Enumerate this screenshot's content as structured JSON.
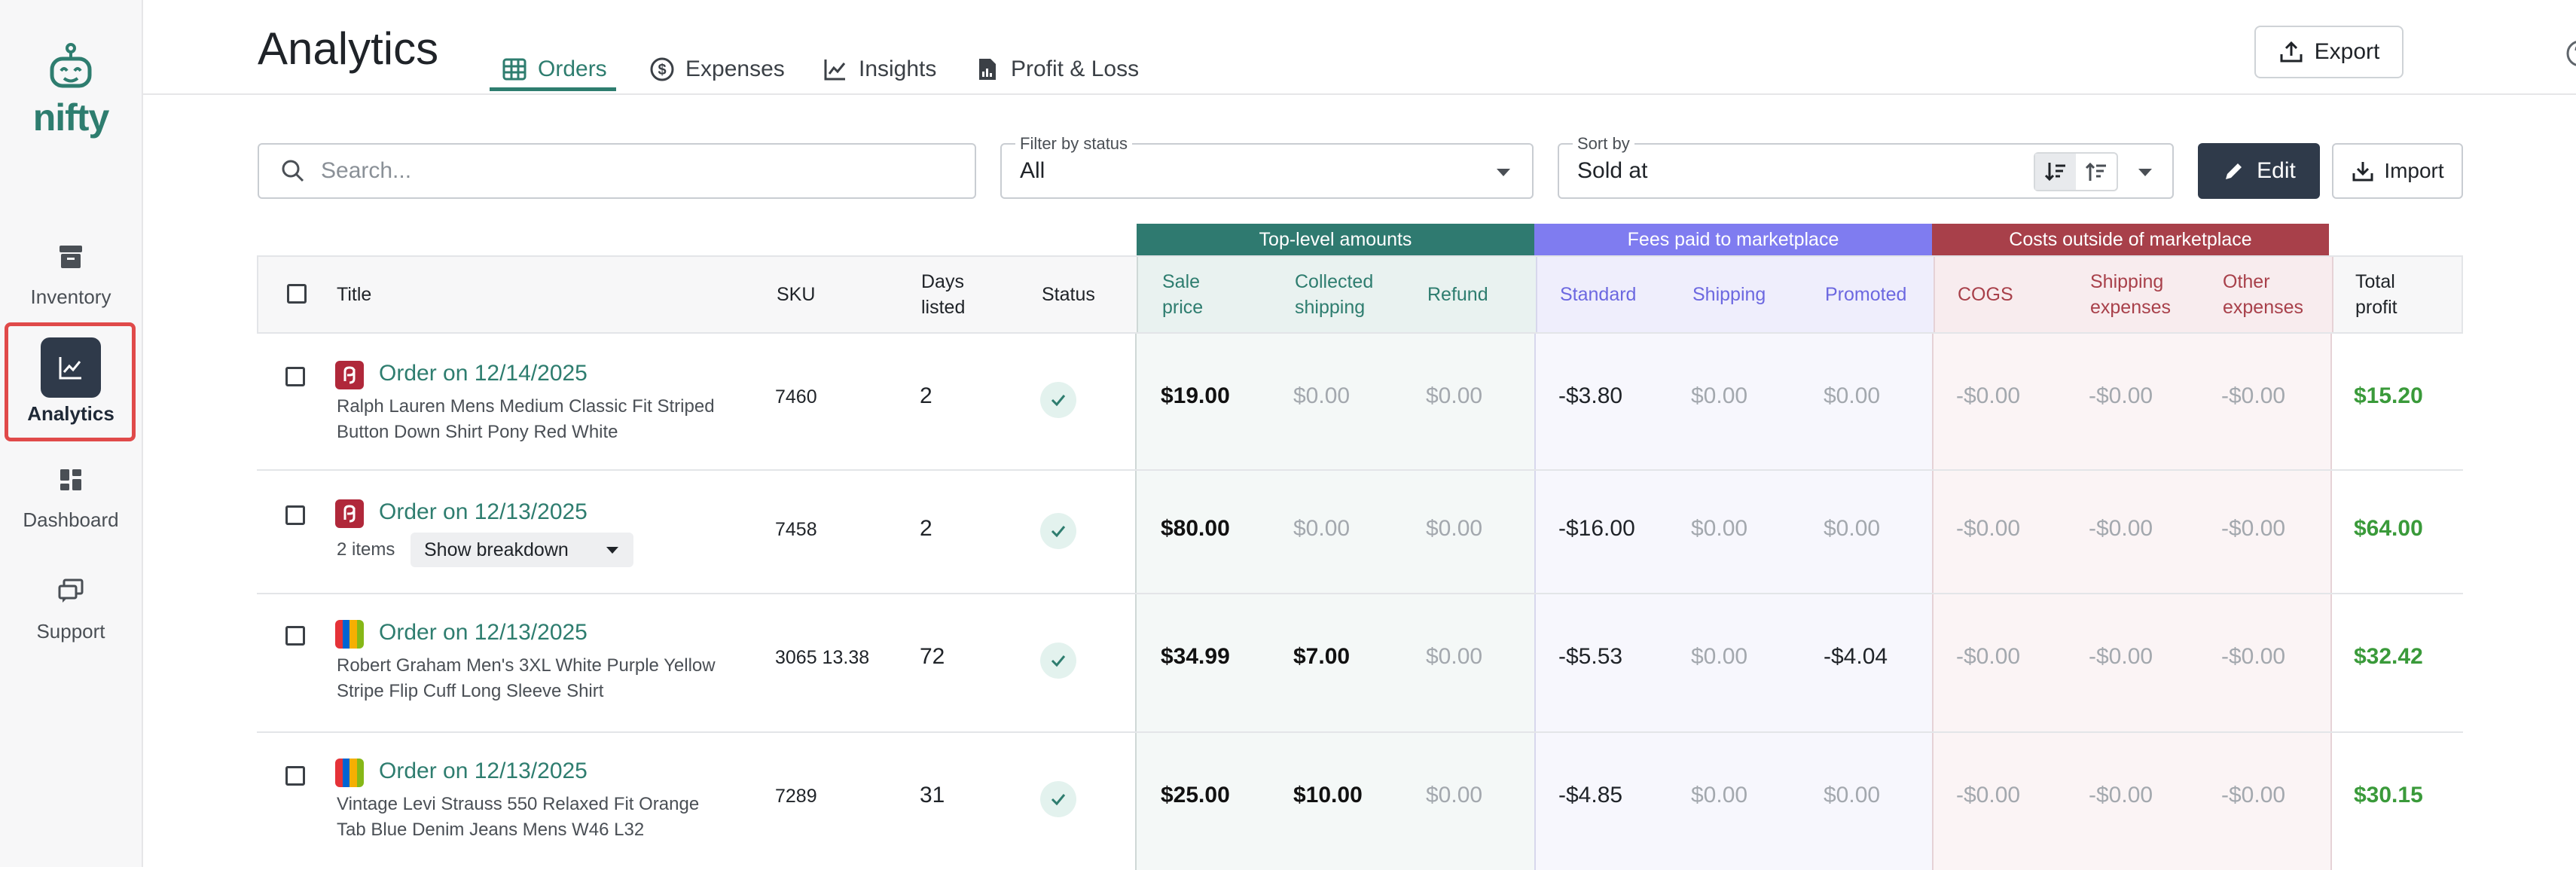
{
  "app": {
    "logo_text": "nifty"
  },
  "sidebar": {
    "items": [
      {
        "label": "Inventory",
        "icon": "archive-box-icon"
      },
      {
        "label": "Analytics",
        "icon": "line-chart-icon",
        "active": true
      },
      {
        "label": "Dashboard",
        "icon": "dashboard-grid-icon"
      },
      {
        "label": "Support",
        "icon": "chat-bubbles-icon"
      }
    ]
  },
  "header": {
    "title": "Analytics",
    "tabs": [
      {
        "label": "Orders",
        "icon": "table-grid-icon",
        "active": true
      },
      {
        "label": "Expenses",
        "icon": "dollar-circle-icon"
      },
      {
        "label": "Insights",
        "icon": "trend-line-icon"
      },
      {
        "label": "Profit & Loss",
        "icon": "report-document-icon"
      }
    ],
    "export_label": "Export"
  },
  "toolbar": {
    "search_placeholder": "Search...",
    "filter_label": "Filter by status",
    "filter_value": "All",
    "sort_label": "Sort by",
    "sort_value": "Sold at",
    "edit_label": "Edit",
    "import_label": "Import"
  },
  "column_groups": [
    {
      "label": "Top-level amounts",
      "color": "#2f7a70"
    },
    {
      "label": "Fees paid to marketplace",
      "color": "#7f7cf0"
    },
    {
      "label": "Costs outside of marketplace",
      "color": "#a8404a"
    }
  ],
  "columns": {
    "title": "Title",
    "sku": "SKU",
    "days_listed": "Days listed",
    "status": "Status",
    "sale_price": "Sale price",
    "collected_shipping": "Collected shipping",
    "refund": "Refund",
    "standard": "Standard",
    "shipping": "Shipping",
    "promoted": "Promoted",
    "cogs": "COGS",
    "shipping_expenses": "Shipping expenses",
    "other_expenses": "Other expenses",
    "total_profit": "Total profit"
  },
  "rows": [
    {
      "title": "Order on 12/14/2025",
      "marketplace": "poshmark",
      "desc": "Ralph Lauren Mens Medium Classic Fit Striped Button Down Shirt Pony Red White",
      "sku": "7460",
      "days": "2",
      "sale": "$19.00",
      "cship": "$0.00",
      "refund": "$0.00",
      "std": "-$3.80",
      "fship": "$0.00",
      "promo": "$0.00",
      "cogs": "-$0.00",
      "sexp": "-$0.00",
      "oexp": "-$0.00",
      "profit": "$15.20"
    },
    {
      "title": "Order on 12/13/2025",
      "marketplace": "poshmark",
      "items_count": "2 items",
      "breakdown_label": "Show breakdown",
      "sku": "7458",
      "days": "2",
      "sale": "$80.00",
      "cship": "$0.00",
      "refund": "$0.00",
      "std": "-$16.00",
      "fship": "$0.00",
      "promo": "$0.00",
      "cogs": "-$0.00",
      "sexp": "-$0.00",
      "oexp": "-$0.00",
      "profit": "$64.00"
    },
    {
      "title": "Order on 12/13/2025",
      "marketplace": "ebay",
      "desc": "Robert Graham Men's 3XL White Purple Yellow Stripe Flip Cuff Long Sleeve Shirt",
      "sku": "3065 13.38",
      "days": "72",
      "sale": "$34.99",
      "cship": "$7.00",
      "refund": "$0.00",
      "std": "-$5.53",
      "fship": "$0.00",
      "promo": "-$4.04",
      "cogs": "-$0.00",
      "sexp": "-$0.00",
      "oexp": "-$0.00",
      "profit": "$32.42"
    },
    {
      "title": "Order on 12/13/2025",
      "marketplace": "ebay",
      "desc": "Vintage Levi Strauss 550 Relaxed Fit Orange Tab Blue Denim Jeans Mens W46 L32",
      "sku": "7289",
      "days": "31",
      "sale": "$25.00",
      "cship": "$10.00",
      "refund": "$0.00",
      "std": "-$4.85",
      "fship": "$0.00",
      "promo": "$0.00",
      "cogs": "-$0.00",
      "sexp": "-$0.00",
      "oexp": "-$0.00",
      "profit": "$30.15"
    }
  ]
}
